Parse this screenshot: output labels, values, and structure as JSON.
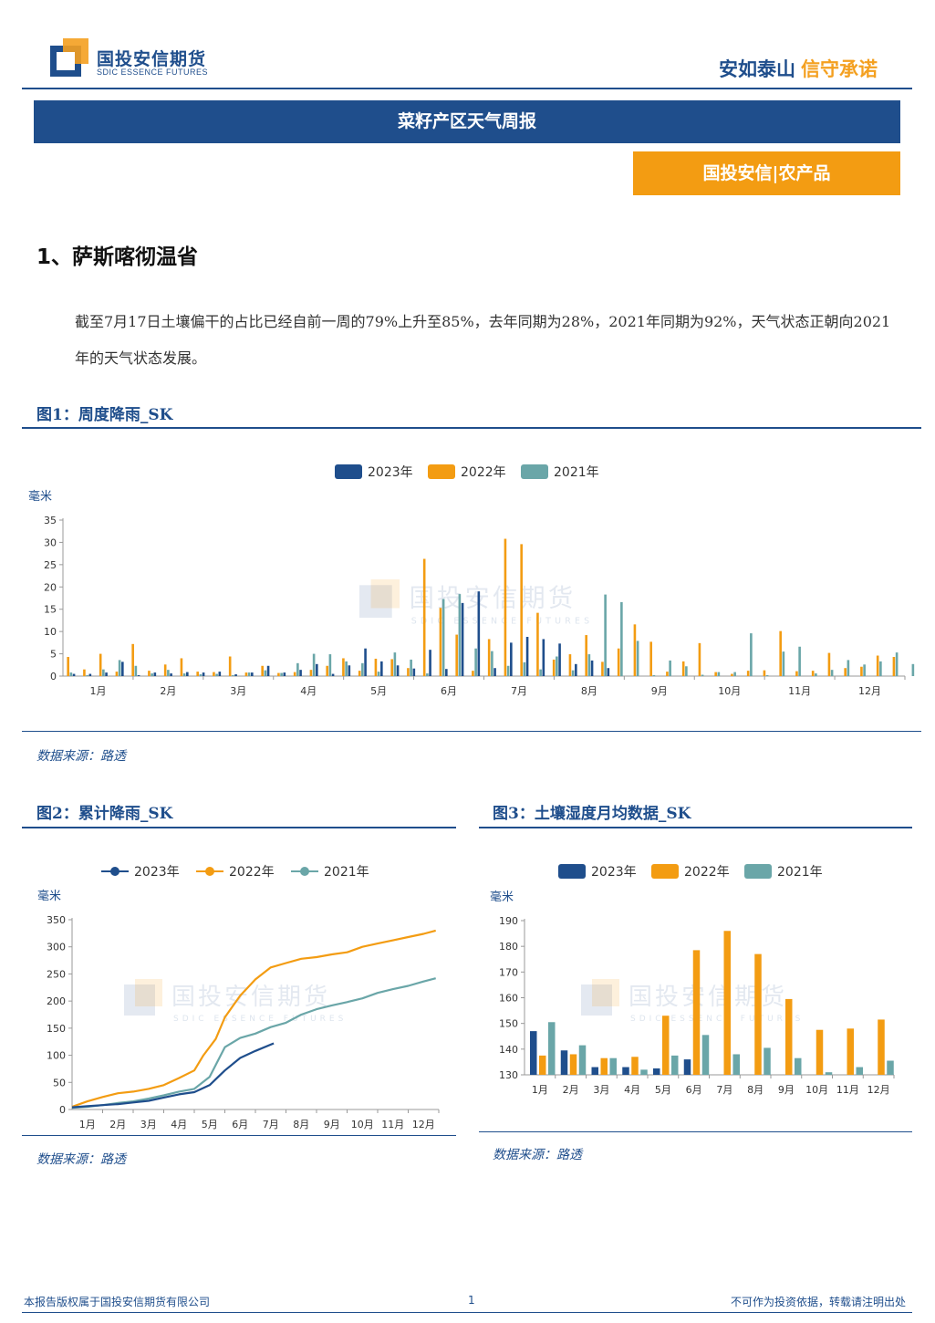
{
  "header": {
    "company_cn": "国投安信期货",
    "company_en": "SDIC ESSENCE FUTURES",
    "slogan_a": "安如泰山",
    "slogan_b": "信守承诺"
  },
  "report_title": "菜籽产区天气周报",
  "sub_banner": "国投安信|农产品",
  "section_heading": "1、萨斯喀彻温省",
  "paragraph": "截至7月17日土壤偏干的占比已经自前一周的79%上升至85%，去年同期为28%，2021年同期为92%，天气状态正朝向2021年的天气状态发展。",
  "figure1": {
    "title": "图1：周度降雨_SK",
    "source": "数据来源：路透"
  },
  "figure2": {
    "title": "图2：累计降雨_SK",
    "source": "数据来源：路透"
  },
  "figure3": {
    "title": "图3：土壤湿度月均数据_SK",
    "source": "数据来源：路透"
  },
  "watermark": {
    "cn": "国投安信期货",
    "en": "SDIC ESSENCE FUTURES"
  },
  "footer": {
    "left": "本报告版权属于国投安信期货有限公司",
    "page": "1",
    "right": "不可作为投资依据，转载请注明出处"
  },
  "colors": {
    "2023": "#1f4e8c",
    "2022": "#f39c12",
    "2021": "#6aa6a8",
    "brand": "#1f4e8c",
    "accent": "#f39c12"
  },
  "chart_data": [
    {
      "id": "weekly",
      "type": "bar",
      "unit": "毫米",
      "ylim": [
        0,
        35
      ],
      "yticks": [
        0,
        5,
        10,
        15,
        20,
        25,
        30,
        35
      ],
      "months": [
        "1月",
        "2月",
        "3月",
        "4月",
        "5月",
        "6月",
        "7月",
        "8月",
        "9月",
        "10月",
        "11月",
        "12月"
      ],
      "series": [
        {
          "name": "2023年",
          "color": "#1f4e8c",
          "values": [
            0.5,
            0.5,
            0.8,
            3.2,
            0.2,
            0.8,
            0.6,
            0.9,
            0.8,
            1.0,
            0.4,
            0.8,
            2.3,
            0.8,
            1.4,
            2.7,
            0.5,
            2.4,
            6.2,
            3.3,
            2.4,
            1.7,
            5.9,
            1.6,
            16.4,
            19.0,
            1.8,
            7.5,
            8.8,
            8.3,
            7.3,
            2.7,
            3.5,
            1.8
          ]
        },
        {
          "name": "2022年",
          "color": "#f39c12",
          "values": [
            4.3,
            1.5,
            5.0,
            1.0,
            7.2,
            1.2,
            2.6,
            4.0,
            1.0,
            0.9,
            4.4,
            0.8,
            2.3,
            0.7,
            0.9,
            1.4,
            2.3,
            4.0,
            1.2,
            3.9,
            3.8,
            1.8,
            26.3,
            15.3,
            9.3,
            1.2,
            8.3,
            30.8,
            29.6,
            14.2,
            3.7,
            4.9,
            9.2,
            3.2,
            6.2,
            11.6,
            7.7,
            1.0,
            3.3,
            7.4,
            0.9,
            0.5,
            1.2,
            1.3,
            10.1,
            1.1,
            1.2,
            5.2,
            1.8,
            2.1,
            4.6,
            4.3
          ]
        },
        {
          "name": "2021年",
          "color": "#6aa6a8",
          "values": [
            0.8,
            0.2,
            1.5,
            3.6,
            2.3,
            0.6,
            1.4,
            0.6,
            0.4,
            0.5,
            0.2,
            0.8,
            1.3,
            0.7,
            2.9,
            5.0,
            4.9,
            3.3,
            2.9,
            1.0,
            5.3,
            3.7,
            0.6,
            17.3,
            18.4,
            6.2,
            5.6,
            2.3,
            3.1,
            1.5,
            4.4,
            1.3,
            4.9,
            18.3,
            16.6,
            7.9,
            0.2,
            3.5,
            2.2,
            0.3,
            0.9,
            0.9,
            9.6,
            0.2,
            5.5,
            6.6,
            0.6,
            1.4,
            3.6,
            2.6,
            3.3,
            5.3,
            2.7
          ]
        }
      ]
    },
    {
      "id": "cumulative",
      "type": "line",
      "unit": "毫米",
      "ylim": [
        0,
        350
      ],
      "yticks": [
        0,
        50,
        100,
        150,
        200,
        250,
        300,
        350
      ],
      "months": [
        "1月",
        "2月",
        "3月",
        "4月",
        "5月",
        "6月",
        "7月",
        "8月",
        "9月",
        "10月",
        "11月",
        "12月"
      ],
      "series": [
        {
          "name": "2023年",
          "color": "#1f4e8c",
          "points": [
            [
              0,
              4
            ],
            [
              0.5,
              6
            ],
            [
              1,
              8
            ],
            [
              1.5,
              10
            ],
            [
              2,
              13
            ],
            [
              2.5,
              16
            ],
            [
              3,
              22
            ],
            [
              3.5,
              28
            ],
            [
              4,
              32
            ],
            [
              4.5,
              45
            ],
            [
              5,
              72
            ],
            [
              5.5,
              95
            ],
            [
              6,
              108
            ],
            [
              6.6,
              122
            ]
          ]
        },
        {
          "name": "2022年",
          "color": "#f39c12",
          "points": [
            [
              0,
              5
            ],
            [
              0.5,
              15
            ],
            [
              1,
              23
            ],
            [
              1.5,
              30
            ],
            [
              2,
              33
            ],
            [
              2.5,
              38
            ],
            [
              3,
              45
            ],
            [
              3.5,
              58
            ],
            [
              4,
              72
            ],
            [
              4.3,
              100
            ],
            [
              4.7,
              130
            ],
            [
              5,
              170
            ],
            [
              5.5,
              210
            ],
            [
              6,
              240
            ],
            [
              6.5,
              262
            ],
            [
              7,
              270
            ],
            [
              7.5,
              278
            ],
            [
              8,
              281
            ],
            [
              8.5,
              286
            ],
            [
              9,
              290
            ],
            [
              9.5,
              300
            ],
            [
              10,
              306
            ],
            [
              10.5,
              312
            ],
            [
              11,
              318
            ],
            [
              11.5,
              324
            ],
            [
              11.9,
              330
            ]
          ]
        },
        {
          "name": "2021年",
          "color": "#6aa6a8",
          "points": [
            [
              0,
              3
            ],
            [
              0.5,
              5
            ],
            [
              1,
              8
            ],
            [
              1.5,
              12
            ],
            [
              2,
              15
            ],
            [
              2.5,
              20
            ],
            [
              3,
              26
            ],
            [
              3.5,
              33
            ],
            [
              4,
              38
            ],
            [
              4.5,
              60
            ],
            [
              5,
              115
            ],
            [
              5.5,
              132
            ],
            [
              6,
              140
            ],
            [
              6.5,
              152
            ],
            [
              7,
              160
            ],
            [
              7.5,
              175
            ],
            [
              8,
              185
            ],
            [
              8.5,
              192
            ],
            [
              9,
              198
            ],
            [
              9.5,
              205
            ],
            [
              10,
              215
            ],
            [
              10.5,
              222
            ],
            [
              11,
              228
            ],
            [
              11.5,
              236
            ],
            [
              11.9,
              242
            ]
          ]
        }
      ]
    },
    {
      "id": "soil",
      "type": "bar",
      "unit": "毫米",
      "ylim": [
        130,
        190
      ],
      "yticks": [
        130,
        140,
        150,
        160,
        170,
        180,
        190
      ],
      "categories": [
        "1月",
        "2月",
        "3月",
        "4月",
        "5月",
        "6月",
        "7月",
        "8月",
        "9月",
        "10月",
        "11月",
        "12月"
      ],
      "series": [
        {
          "name": "2023年",
          "color": "#1f4e8c",
          "values": [
            147,
            139.5,
            133,
            133,
            132.5,
            136,
            null,
            null,
            null,
            null,
            null,
            null
          ]
        },
        {
          "name": "2022年",
          "color": "#f39c12",
          "values": [
            137.5,
            138,
            136.5,
            137,
            153,
            178.5,
            186,
            177,
            159.5,
            147.5,
            148,
            151.5
          ]
        },
        {
          "name": "2021年",
          "color": "#6aa6a8",
          "values": [
            150.5,
            141.5,
            136.5,
            132,
            137.5,
            145.5,
            138,
            140.5,
            136.5,
            131,
            133,
            135.5
          ]
        }
      ]
    }
  ]
}
